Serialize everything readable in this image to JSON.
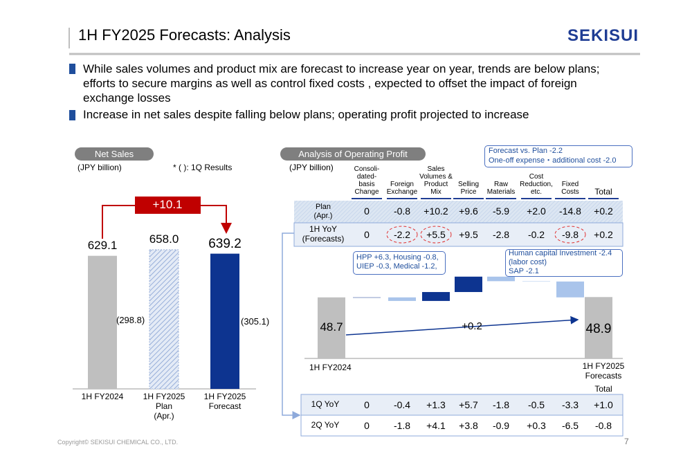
{
  "header": {
    "title": "1H FY2025 Forecasts: Analysis",
    "logo": "SEKISUI"
  },
  "bullets": [
    "While sales volumes and product mix are forecast to increase year on year, trends are below plans; efforts to secure margins as well as control fixed costs , expected to offset the impact of foreign exchange losses",
    "Increase in net sales despite falling below plans; operating profit projected to increase"
  ],
  "chart_data": [
    {
      "type": "bar",
      "label": "Net Sales",
      "unit": "(JPY billion)",
      "note": "* ( ): 1Q Results",
      "categories": [
        "1H FY2024",
        "1H FY2025\nPlan\n(Apr.)",
        "1H FY2025\nForecast"
      ],
      "values": [
        629.1,
        658.0,
        639.2
      ],
      "value_labels": [
        "629.1",
        "658.0",
        "639.2"
      ],
      "colors": [
        "#bfbfbf",
        "#9ab0d8",
        "#0d3490"
      ],
      "ylim": [
        0,
        700
      ],
      "q1_results": [
        "(298.8)",
        "(305.1)"
      ],
      "difference": "+10.1"
    },
    {
      "type": "waterfall",
      "label": "Analysis of Operating Profit",
      "unit": "(JPY billion)",
      "categories": [
        "Consoli-\ndated-\nbasis\nChange",
        "Foreign\nExchange",
        "Sales\nVolumes &\nProduct\nMix",
        "Selling\nPrice",
        "Raw\nMaterials",
        "Cost\nReduction,\netc.",
        "Fixed\nCosts"
      ],
      "row_label": "1H YoY\n(Forecasts)",
      "values": [
        0,
        -2.2,
        5.5,
        9.5,
        -2.8,
        -0.2,
        -9.8
      ],
      "value_labels": [
        "0",
        "-2.2",
        "+5.5",
        "+9.5",
        "-2.8",
        "-0.2",
        "-9.8"
      ],
      "start_label": "1H FY2024",
      "start_value": 48.7,
      "end_label": "1H FY2025\nForecasts",
      "end_value": 48.9,
      "change": "+0.2",
      "ylim": [
        11,
        65
      ],
      "colors": {
        "increase": "#0d3490",
        "decrease": "#a9c4eb",
        "total": "#bfbfbf"
      }
    }
  ],
  "table": {
    "total_header": "Total",
    "plan": {
      "label": "Plan\n(Apr.)",
      "cells": [
        "0",
        "-0.8",
        "+10.2",
        "+9.6",
        "-5.9",
        "+2.0",
        "-14.8"
      ],
      "total": "+0.2"
    },
    "quarters": [
      {
        "label": "1Q YoY",
        "cells": [
          "0",
          "-0.4",
          "+1.3",
          "+5.7",
          "-1.8",
          "-0.5",
          "-3.3"
        ],
        "total": "+1.0"
      },
      {
        "label": "2Q YoY",
        "cells": [
          "0",
          "-1.8",
          "+4.1",
          "+3.8",
          "-0.9",
          "+0.3",
          "-6.5"
        ],
        "total": "-0.8"
      }
    ]
  },
  "callouts": {
    "vs_plan": [
      "Forecast vs. Plan -2.2",
      "One-off expense・additional cost -2.0"
    ],
    "fx": "HPP +6.3, Housing -0.8,\nUIEP -0.3, Medical -1.2,",
    "fixed": "Human capital Investment -2.4\n (labor cost)\nSAP -2.1"
  },
  "footer": {
    "copyright": "Copyright© SEKISUI CHEMICAL CO., LTD.",
    "page": "7"
  }
}
